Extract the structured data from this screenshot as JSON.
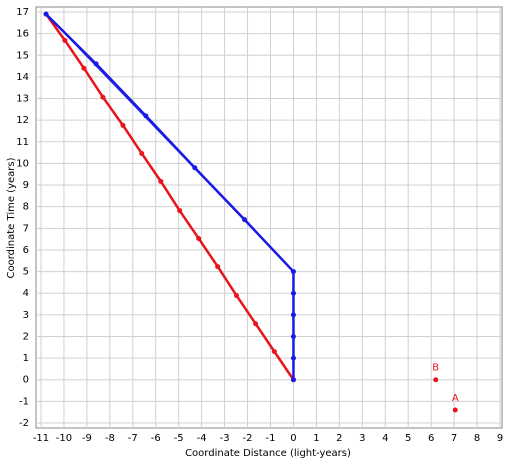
{
  "chart_data": {
    "type": "scatter-line",
    "x_label": "Coordinate Distance (light-years)",
    "y_label": "Coordinate Time (years)",
    "xlim": [
      -11,
      9
    ],
    "xticks": [
      -11,
      -10,
      -9,
      -8,
      -7,
      -6,
      -5,
      -4,
      -3,
      -2,
      -1,
      0,
      1,
      2,
      3,
      4,
      5,
      6,
      7,
      8,
      9
    ],
    "ylim": [
      -2,
      17
    ],
    "yticks": [
      -2,
      -1,
      0,
      1,
      2,
      3,
      4,
      5,
      6,
      7,
      8,
      9,
      10,
      11,
      12,
      13,
      14,
      15,
      16,
      17
    ],
    "grid": true,
    "series": [
      {
        "color": "#e8141b",
        "line_width": 2.5,
        "markers": true,
        "x": [
          0,
          -0.83,
          -1.65,
          -2.48,
          -3.3,
          -4.13,
          -4.96,
          -5.78,
          -6.61,
          -7.43,
          -8.3,
          -9.13,
          -9.96,
          -10.78
        ],
        "y": [
          0,
          1.3,
          2.59,
          3.89,
          5.23,
          6.53,
          7.82,
          9.17,
          10.46,
          11.76,
          13.06,
          14.4,
          15.69,
          16.9
        ]
      },
      {
        "color": "#1a1ae6",
        "line_width": 2.5,
        "markers": true,
        "x": [
          0,
          0,
          0,
          0,
          0,
          0,
          -2.13,
          -4.3,
          -6.43,
          -8.6,
          -10.78
        ],
        "y": [
          0,
          1,
          2,
          3,
          4,
          5,
          7.4,
          9.8,
          12.2,
          14.6,
          16.9
        ]
      },
      {
        "color": "#1a1ae6",
        "line_width": 0.8,
        "markers": false,
        "x": [
          0,
          -10.78
        ],
        "y": [
          5,
          16.9
        ]
      }
    ],
    "points": [
      {
        "label": "B",
        "x": 6.2,
        "y": 0,
        "color": "#e8141b"
      },
      {
        "label": "A",
        "x": 7.05,
        "y": -1.4,
        "color": "#e8141b"
      }
    ]
  }
}
